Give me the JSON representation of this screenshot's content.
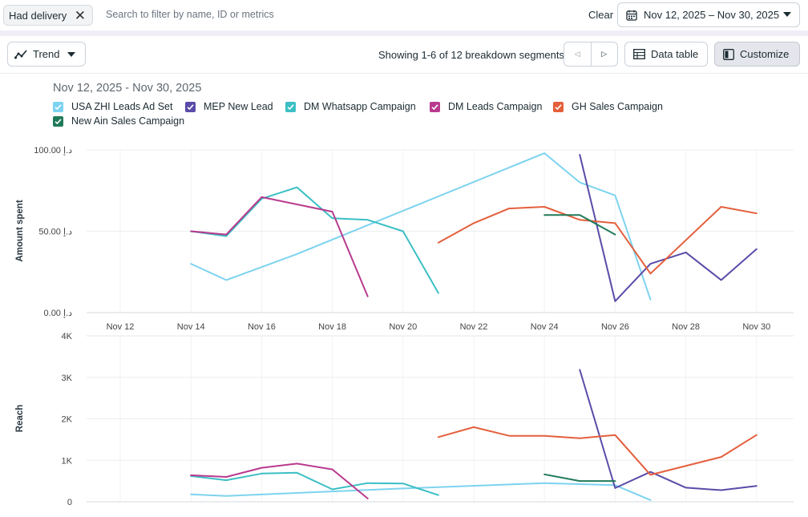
{
  "filter": {
    "chip_label": "Had delivery",
    "search_placeholder": "Search to filter by name, ID or metrics",
    "clear_label": "Clear",
    "date_range": "Nov 12, 2025 – Nov 30, 2025"
  },
  "toolbar": {
    "view_label": "Trend",
    "showing_text": "Showing 1-6 of 12 breakdown segments",
    "data_table_label": "Data table",
    "customize_label": "Customize"
  },
  "icons": {
    "view": "trend-line-icon",
    "close": "close-icon",
    "calendar": "calendar-icon",
    "prev": "chevron-left-icon",
    "next": "chevron-right-icon",
    "table": "table-icon",
    "customize": "customize-panel-icon"
  },
  "chart_title": "Nov 12, 2025 - Nov 30, 2025",
  "chart_data": [
    {
      "type": "line",
      "ylabel": "Amount spent",
      "ylim": [
        0,
        100
      ],
      "yticks": [
        "0.00 د.إ",
        "50.00 د.إ",
        "100.00 د.إ"
      ],
      "x_tick_labels": [
        "Nov 12",
        "Nov 14",
        "Nov 16",
        "Nov 18",
        "Nov 20",
        "Nov 22",
        "Nov 24",
        "Nov 26",
        "Nov 28",
        "Nov 30"
      ],
      "x_range": [
        12,
        30
      ],
      "grid": true,
      "series": [
        {
          "name": "USA ZHI Leads Ad Set",
          "color": "#7dd3f0",
          "x": [
            14,
            15,
            17,
            24,
            25,
            26,
            27
          ],
          "y": [
            30,
            20,
            36,
            98,
            80,
            72,
            8
          ]
        },
        {
          "name": "MEP New Lead",
          "color": "#5b4ba8",
          "x": [
            25,
            26,
            27,
            28,
            29,
            30
          ],
          "y": [
            97,
            7,
            30,
            37,
            20,
            39
          ]
        },
        {
          "name": "DM Whatsapp Campaign",
          "color": "#3bbfc4",
          "x": [
            14,
            15,
            16,
            17,
            18,
            19,
            20,
            21
          ],
          "y": [
            50,
            47,
            70,
            77,
            58,
            57,
            50,
            12
          ]
        },
        {
          "name": "DM Leads Campaign",
          "color": "#b83a8e",
          "x": [
            14,
            15,
            16,
            18,
            19
          ],
          "y": [
            50,
            48,
            71,
            62,
            10
          ]
        },
        {
          "name": "GH Sales Campaign",
          "color": "#e45f3c",
          "x": [
            21,
            22,
            23,
            24,
            25,
            26,
            27,
            29,
            30
          ],
          "y": [
            43,
            55,
            64,
            65,
            57,
            55,
            24,
            65,
            61
          ]
        },
        {
          "name": "New Ain Sales Campaign",
          "color": "#1f7a5a",
          "x": [
            24,
            25,
            26
          ],
          "y": [
            60,
            60,
            48
          ]
        }
      ]
    },
    {
      "type": "line",
      "ylabel": "Reach",
      "ylim": [
        0,
        4000
      ],
      "yticks": [
        "0",
        "1K",
        "2K",
        "3K",
        "4K"
      ],
      "x_range": [
        12,
        30
      ],
      "grid": true,
      "series": [
        {
          "name": "USA ZHI Leads Ad Set",
          "color": "#7dd3f0",
          "x": [
            14,
            15,
            18,
            20,
            24,
            26,
            27
          ],
          "y": [
            180,
            140,
            250,
            320,
            450,
            400,
            40
          ]
        },
        {
          "name": "MEP New Lead",
          "color": "#5b4ba8",
          "x": [
            25,
            26,
            27,
            28,
            29,
            30
          ],
          "y": [
            3180,
            330,
            720,
            340,
            280,
            380
          ]
        },
        {
          "name": "DM Whatsapp Campaign",
          "color": "#3bbfc4",
          "x": [
            14,
            15,
            16,
            17,
            18,
            19,
            20,
            21
          ],
          "y": [
            620,
            520,
            680,
            700,
            300,
            450,
            440,
            160
          ]
        },
        {
          "name": "DM Leads Campaign",
          "color": "#b83a8e",
          "x": [
            14,
            15,
            16,
            17,
            18,
            19
          ],
          "y": [
            640,
            600,
            820,
            920,
            780,
            80
          ]
        },
        {
          "name": "GH Sales Campaign",
          "color": "#e45f3c",
          "x": [
            21,
            22,
            23,
            24,
            25,
            26,
            27,
            29,
            30
          ],
          "y": [
            1560,
            1800,
            1590,
            1590,
            1530,
            1610,
            650,
            1080,
            1610
          ]
        },
        {
          "name": "New Ain Sales Campaign",
          "color": "#1f7a5a",
          "x": [
            24,
            25,
            26
          ],
          "y": [
            660,
            500,
            500
          ]
        }
      ]
    }
  ]
}
